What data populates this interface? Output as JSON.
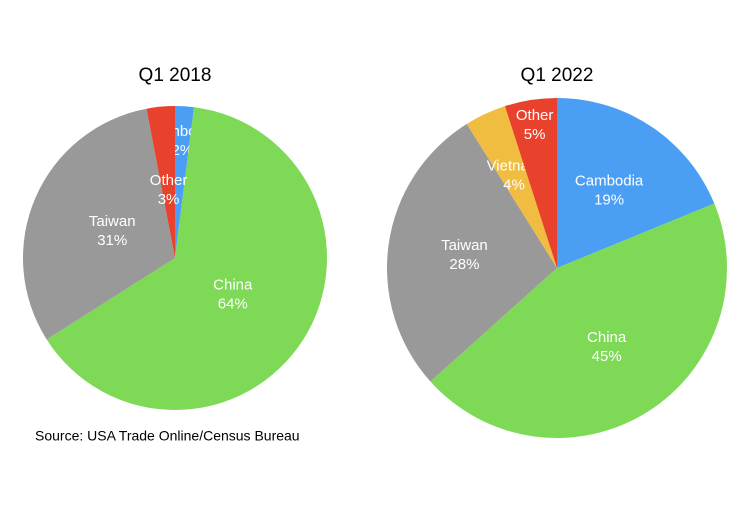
{
  "chart_data": [
    {
      "type": "pie",
      "title": "Q1 2018",
      "categories": [
        "Cambodia",
        "China",
        "Taiwan",
        "Other"
      ],
      "values": [
        2,
        64,
        31,
        3
      ],
      "value_labels": [
        "2%",
        "64%",
        "31%",
        "3%"
      ],
      "colors": [
        "#4a9ff5",
        "#7ed957",
        "#999999",
        "#e8412c"
      ]
    },
    {
      "type": "pie",
      "title": "Q1 2022",
      "categories": [
        "Cambodia",
        "China",
        "Taiwan",
        "Vietnam",
        "Other"
      ],
      "values": [
        19,
        45,
        28,
        4,
        5
      ],
      "value_labels": [
        "19%",
        "45%",
        "28%",
        "4%",
        "5%"
      ],
      "colors": [
        "#4a9ff5",
        "#7ed957",
        "#999999",
        "#f0bd40",
        "#e8412c"
      ]
    }
  ],
  "source": "Source: USA Trade Online/Census Bureau"
}
